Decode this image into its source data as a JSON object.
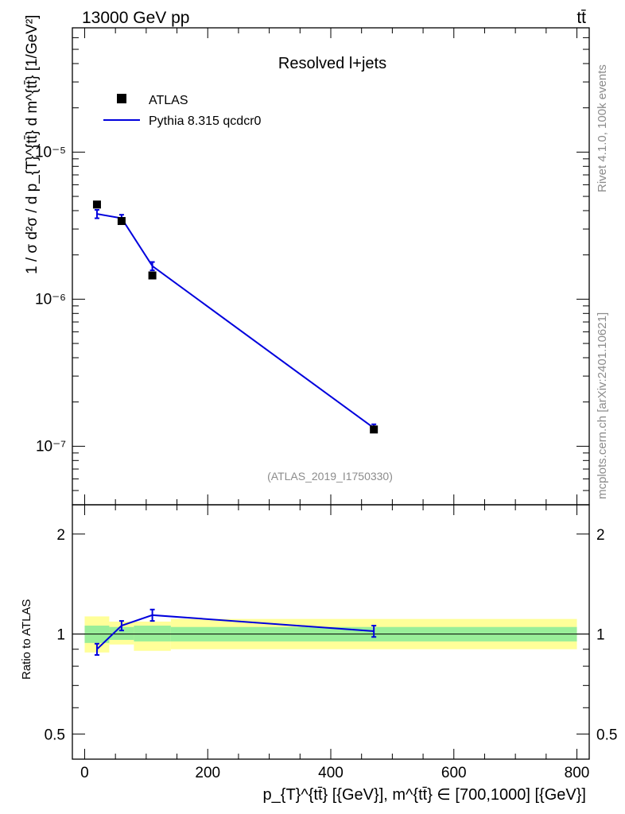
{
  "header": {
    "energy_label": "13000 GeV pp",
    "process_label": "tt̄"
  },
  "side_labels": {
    "rivet": "Rivet 4.1.0,  100k events",
    "mcplots": "mcplots.cern.ch [arXiv:2401.10621]"
  },
  "colors": {
    "mc_line": "#0000dd",
    "data_marker": "#000000",
    "band_inner": "#99ee99",
    "band_outer": "#ffff99"
  },
  "chart_data": [
    {
      "type": "line",
      "panel": "main",
      "title": "Resolved l+jets",
      "analysis_id": "(ATLAS_2019_I1750330)",
      "xlabel": "p_{T}^{tt̄} [{GeV}], m^{tt̄} ∈ [700,1000] [{GeV}]",
      "ylabel": "1 / σ d²σ / d p_{T}^{tt̄} d m^{tt̄} [1/GeV²]",
      "yscale": "log",
      "xlim": [
        -20,
        820
      ],
      "ylim": [
        4e-08,
        7e-05
      ],
      "x_ticks": [
        0,
        200,
        400,
        600,
        800
      ],
      "y_tick_labels": [
        {
          "value": 1e-07,
          "label": "10⁻⁷"
        },
        {
          "value": 1e-06,
          "label": "10⁻⁶"
        },
        {
          "value": 1e-05,
          "label": "10⁻⁵"
        }
      ],
      "legend": {
        "position": "top-left",
        "entries": [
          "ATLAS",
          "Pythia 8.315 qcdcr0"
        ]
      },
      "series": [
        {
          "name": "ATLAS",
          "kind": "markers",
          "x": [
            20,
            60,
            110,
            470
          ],
          "y": [
            4.4e-06,
            3.4e-06,
            1.45e-06,
            1.3e-07
          ]
        },
        {
          "name": "Pythia 8.315 qcdcr0",
          "kind": "line",
          "x": [
            20,
            60,
            110,
            470
          ],
          "y": [
            3.8e-06,
            3.55e-06,
            1.68e-06,
            1.33e-07
          ],
          "yerr": [
            2.5e-07,
            2e-07,
            1.1e-07,
            8e-09
          ]
        }
      ]
    },
    {
      "type": "line",
      "panel": "ratio",
      "ylabel": "Ratio to ATLAS",
      "yscale": "log",
      "xlim": [
        -20,
        820
      ],
      "ylim": [
        0.42,
        2.45
      ],
      "y_ticks": [
        0.5,
        1,
        2
      ],
      "y_tick_labels": [
        "0.5",
        "1",
        "2"
      ],
      "x_ticks": [
        0,
        200,
        400,
        600,
        800
      ],
      "x_tick_labels": [
        "0",
        "200",
        "400",
        "600",
        "800"
      ],
      "bands": [
        {
          "x0": 0,
          "x1": 40,
          "inner": [
            0.94,
            1.06
          ],
          "outer": [
            0.88,
            1.13
          ]
        },
        {
          "x0": 40,
          "x1": 80,
          "inner": [
            0.96,
            1.05
          ],
          "outer": [
            0.93,
            1.09
          ]
        },
        {
          "x0": 80,
          "x1": 140,
          "inner": [
            0.95,
            1.06
          ],
          "outer": [
            0.89,
            1.09
          ]
        },
        {
          "x0": 140,
          "x1": 800,
          "inner": [
            0.95,
            1.05
          ],
          "outer": [
            0.9,
            1.11
          ]
        }
      ],
      "series": [
        {
          "name": "Pythia 8.315 qcdcr0 / ATLAS",
          "x": [
            20,
            60,
            110,
            470
          ],
          "y": [
            0.9,
            1.06,
            1.14,
            1.02
          ],
          "yerr": [
            0.035,
            0.035,
            0.045,
            0.04
          ]
        }
      ]
    }
  ]
}
